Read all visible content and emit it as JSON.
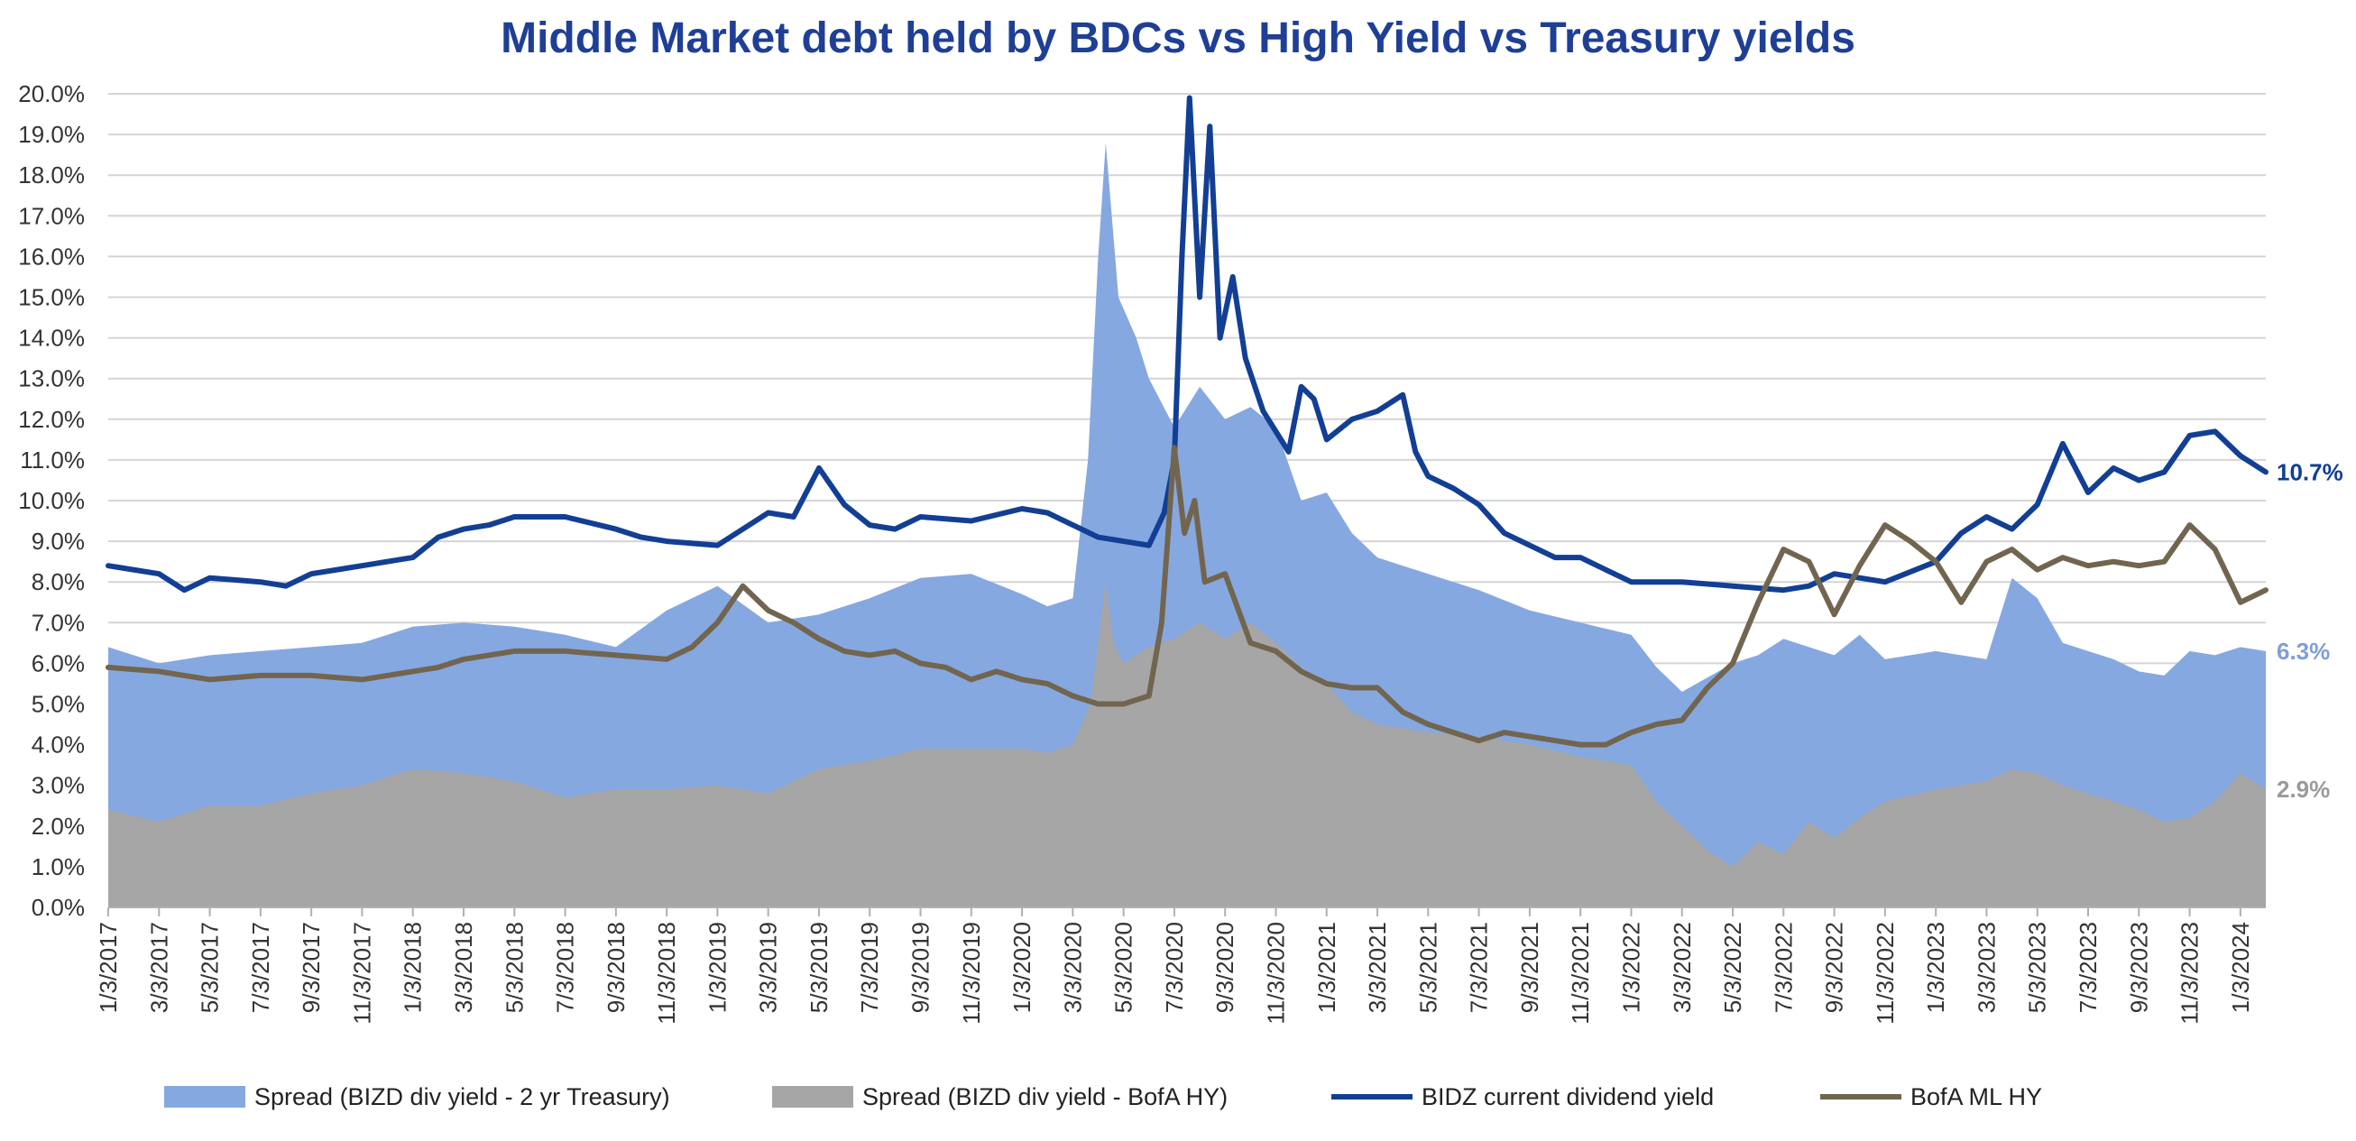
{
  "chart_data": {
    "type": "area",
    "title": "Middle Market debt held by BDCs vs High Yield vs Treasury yields",
    "xlabel": "",
    "ylabel": "",
    "ylim": [
      0,
      20
    ],
    "y_ticks": [
      "0.0%",
      "1.0%",
      "2.0%",
      "3.0%",
      "4.0%",
      "5.0%",
      "6.0%",
      "7.0%",
      "8.0%",
      "9.0%",
      "10.0%",
      "11.0%",
      "12.0%",
      "13.0%",
      "14.0%",
      "15.0%",
      "16.0%",
      "17.0%",
      "18.0%",
      "19.0%",
      "20.0%"
    ],
    "x_ticks": [
      "1/3/2017",
      "3/3/2017",
      "5/3/2017",
      "7/3/2017",
      "9/3/2017",
      "11/3/2017",
      "1/3/2018",
      "3/3/2018",
      "5/3/2018",
      "7/3/2018",
      "9/3/2018",
      "11/3/2018",
      "1/3/2019",
      "3/3/2019",
      "5/3/2019",
      "7/3/2019",
      "9/3/2019",
      "11/3/2019",
      "1/3/2020",
      "3/3/2020",
      "5/3/2020",
      "7/3/2020",
      "9/3/2020",
      "11/3/2020",
      "1/3/2021",
      "3/3/2021",
      "5/3/2021",
      "7/3/2021",
      "9/3/2021",
      "11/3/2021",
      "1/3/2022",
      "3/3/2022",
      "5/3/2022",
      "7/3/2022",
      "9/3/2022",
      "11/3/2022",
      "1/3/2023",
      "3/3/2023",
      "5/3/2023",
      "7/3/2023",
      "9/3/2023",
      "11/3/2023",
      "1/3/2024"
    ],
    "x_months": [
      0,
      85
    ],
    "grid": true,
    "legend_position": "bottom",
    "colors": {
      "spread_treasury": "#86a8e0",
      "spread_hy": "#a6a6a6",
      "bizd_yield": "#123f94",
      "bofa_hy": "#72654f"
    },
    "series": [
      {
        "name": "Spread (BIZD div yield - 2 yr Treasury)",
        "kind": "area",
        "color": "#86a8e0",
        "end_label": "6.3%",
        "points": [
          [
            0,
            6.4
          ],
          [
            2,
            6.0
          ],
          [
            4,
            6.2
          ],
          [
            6,
            6.3
          ],
          [
            8,
            6.4
          ],
          [
            10,
            6.5
          ],
          [
            12,
            6.9
          ],
          [
            14,
            7.0
          ],
          [
            16,
            6.9
          ],
          [
            18,
            6.7
          ],
          [
            20,
            6.4
          ],
          [
            22,
            7.3
          ],
          [
            24,
            7.9
          ],
          [
            26,
            7.0
          ],
          [
            28,
            7.2
          ],
          [
            30,
            7.6
          ],
          [
            32,
            8.1
          ],
          [
            34,
            8.2
          ],
          [
            36,
            7.7
          ],
          [
            37,
            7.4
          ],
          [
            38,
            7.6
          ],
          [
            38.6,
            11.0
          ],
          [
            39,
            16.0
          ],
          [
            39.3,
            18.8
          ],
          [
            39.8,
            15.0
          ],
          [
            40.5,
            14.0
          ],
          [
            41,
            13.0
          ],
          [
            42,
            11.8
          ],
          [
            43,
            12.8
          ],
          [
            44,
            12.0
          ],
          [
            45,
            12.3
          ],
          [
            46,
            11.8
          ],
          [
            47,
            10.0
          ],
          [
            48,
            10.2
          ],
          [
            49,
            9.2
          ],
          [
            50,
            8.6
          ],
          [
            51,
            8.4
          ],
          [
            52,
            8.2
          ],
          [
            54,
            7.8
          ],
          [
            56,
            7.3
          ],
          [
            58,
            7.0
          ],
          [
            60,
            6.7
          ],
          [
            61,
            5.9
          ],
          [
            62,
            5.3
          ],
          [
            64,
            6.0
          ],
          [
            65,
            6.2
          ],
          [
            66,
            6.6
          ],
          [
            67,
            6.4
          ],
          [
            68,
            6.2
          ],
          [
            69,
            6.7
          ],
          [
            70,
            6.1
          ],
          [
            72,
            6.3
          ],
          [
            74,
            6.1
          ],
          [
            75,
            8.1
          ],
          [
            76,
            7.6
          ],
          [
            77,
            6.5
          ],
          [
            78,
            6.3
          ],
          [
            79,
            6.1
          ],
          [
            80,
            5.8
          ],
          [
            81,
            5.7
          ],
          [
            82,
            6.3
          ],
          [
            83,
            6.2
          ],
          [
            84,
            6.4
          ],
          [
            85,
            6.3
          ]
        ]
      },
      {
        "name": "Spread (BIZD div yield - BofA HY)",
        "kind": "area",
        "color": "#a6a6a6",
        "end_label": "2.9%",
        "points": [
          [
            0,
            2.4
          ],
          [
            2,
            2.1
          ],
          [
            4,
            2.5
          ],
          [
            6,
            2.5
          ],
          [
            8,
            2.8
          ],
          [
            10,
            3.0
          ],
          [
            12,
            3.4
          ],
          [
            14,
            3.3
          ],
          [
            16,
            3.1
          ],
          [
            18,
            2.7
          ],
          [
            20,
            2.9
          ],
          [
            22,
            2.9
          ],
          [
            24,
            3.0
          ],
          [
            26,
            2.8
          ],
          [
            28,
            3.4
          ],
          [
            30,
            3.6
          ],
          [
            32,
            3.9
          ],
          [
            34,
            3.9
          ],
          [
            36,
            3.9
          ],
          [
            37,
            3.8
          ],
          [
            38,
            4.0
          ],
          [
            38.7,
            5.0
          ],
          [
            39.3,
            8.0
          ],
          [
            39.6,
            6.5
          ],
          [
            40,
            6.0
          ],
          [
            41,
            6.4
          ],
          [
            42,
            6.6
          ],
          [
            43,
            7.0
          ],
          [
            44,
            6.6
          ],
          [
            45,
            7.0
          ],
          [
            46,
            6.5
          ],
          [
            47,
            5.9
          ],
          [
            48,
            5.5
          ],
          [
            49,
            4.8
          ],
          [
            50,
            4.5
          ],
          [
            52,
            4.3
          ],
          [
            54,
            4.2
          ],
          [
            56,
            4.0
          ],
          [
            58,
            3.7
          ],
          [
            60,
            3.5
          ],
          [
            61,
            2.6
          ],
          [
            62,
            2.0
          ],
          [
            63,
            1.4
          ],
          [
            64,
            1.0
          ],
          [
            65,
            1.6
          ],
          [
            66,
            1.3
          ],
          [
            67,
            2.1
          ],
          [
            68,
            1.7
          ],
          [
            69,
            2.2
          ],
          [
            70,
            2.6
          ],
          [
            72,
            2.9
          ],
          [
            74,
            3.1
          ],
          [
            75,
            3.4
          ],
          [
            76,
            3.3
          ],
          [
            77,
            3.0
          ],
          [
            78,
            2.8
          ],
          [
            79,
            2.6
          ],
          [
            80,
            2.4
          ],
          [
            81,
            2.1
          ],
          [
            82,
            2.2
          ],
          [
            83,
            2.6
          ],
          [
            84,
            3.3
          ],
          [
            85,
            2.9
          ]
        ]
      },
      {
        "name": "BIDZ current dividend yield",
        "kind": "line",
        "color": "#123f94",
        "end_label": "10.7%",
        "points": [
          [
            0,
            8.4
          ],
          [
            2,
            8.2
          ],
          [
            3,
            7.8
          ],
          [
            4,
            8.1
          ],
          [
            6,
            8.0
          ],
          [
            7,
            7.9
          ],
          [
            8,
            8.2
          ],
          [
            10,
            8.4
          ],
          [
            12,
            8.6
          ],
          [
            13,
            9.1
          ],
          [
            14,
            9.3
          ],
          [
            15,
            9.4
          ],
          [
            16,
            9.6
          ],
          [
            18,
            9.6
          ],
          [
            20,
            9.3
          ],
          [
            21,
            9.1
          ],
          [
            22,
            9.0
          ],
          [
            24,
            8.9
          ],
          [
            25,
            9.3
          ],
          [
            26,
            9.7
          ],
          [
            27,
            9.6
          ],
          [
            28,
            10.8
          ],
          [
            29,
            9.9
          ],
          [
            30,
            9.4
          ],
          [
            31,
            9.3
          ],
          [
            32,
            9.6
          ],
          [
            34,
            9.5
          ],
          [
            36,
            9.8
          ],
          [
            37,
            9.7
          ],
          [
            38,
            9.4
          ],
          [
            39,
            9.1
          ],
          [
            40,
            9.0
          ],
          [
            41,
            8.9
          ],
          [
            41.6,
            9.7
          ],
          [
            42,
            11.0
          ],
          [
            42.3,
            16.0
          ],
          [
            42.6,
            19.9
          ],
          [
            43,
            15.0
          ],
          [
            43.4,
            19.2
          ],
          [
            43.8,
            14.0
          ],
          [
            44.3,
            15.5
          ],
          [
            44.8,
            13.5
          ],
          [
            45.5,
            12.2
          ],
          [
            46.5,
            11.2
          ],
          [
            47,
            12.8
          ],
          [
            47.5,
            12.5
          ],
          [
            48,
            11.5
          ],
          [
            49,
            12.0
          ],
          [
            50,
            12.2
          ],
          [
            51,
            12.6
          ],
          [
            51.5,
            11.2
          ],
          [
            52,
            10.6
          ],
          [
            53,
            10.3
          ],
          [
            54,
            9.9
          ],
          [
            55,
            9.2
          ],
          [
            56,
            8.9
          ],
          [
            57,
            8.6
          ],
          [
            58,
            8.6
          ],
          [
            59,
            8.3
          ],
          [
            60,
            8.0
          ],
          [
            62,
            8.0
          ],
          [
            64,
            7.9
          ],
          [
            66,
            7.8
          ],
          [
            67,
            7.9
          ],
          [
            68,
            8.2
          ],
          [
            70,
            8.0
          ],
          [
            72,
            8.5
          ],
          [
            73,
            9.2
          ],
          [
            74,
            9.6
          ],
          [
            75,
            9.3
          ],
          [
            76,
            9.9
          ],
          [
            77,
            11.4
          ],
          [
            78,
            10.2
          ],
          [
            79,
            10.8
          ],
          [
            80,
            10.5
          ],
          [
            81,
            10.7
          ],
          [
            82,
            11.6
          ],
          [
            83,
            11.7
          ],
          [
            84,
            11.1
          ],
          [
            85,
            10.7
          ]
        ]
      },
      {
        "name": "BofA ML HY",
        "kind": "line",
        "color": "#72654f",
        "end_label": "",
        "points": [
          [
            0,
            5.9
          ],
          [
            2,
            5.8
          ],
          [
            4,
            5.6
          ],
          [
            6,
            5.7
          ],
          [
            8,
            5.7
          ],
          [
            10,
            5.6
          ],
          [
            12,
            5.8
          ],
          [
            13,
            5.9
          ],
          [
            14,
            6.1
          ],
          [
            16,
            6.3
          ],
          [
            18,
            6.3
          ],
          [
            20,
            6.2
          ],
          [
            22,
            6.1
          ],
          [
            23,
            6.4
          ],
          [
            24,
            7.0
          ],
          [
            25,
            7.9
          ],
          [
            26,
            7.3
          ],
          [
            27,
            7.0
          ],
          [
            28,
            6.6
          ],
          [
            29,
            6.3
          ],
          [
            30,
            6.2
          ],
          [
            31,
            6.3
          ],
          [
            32,
            6.0
          ],
          [
            33,
            5.9
          ],
          [
            34,
            5.6
          ],
          [
            35,
            5.8
          ],
          [
            36,
            5.6
          ],
          [
            37,
            5.5
          ],
          [
            38,
            5.2
          ],
          [
            39,
            5.0
          ],
          [
            40,
            5.0
          ],
          [
            41,
            5.2
          ],
          [
            41.5,
            7.0
          ],
          [
            42,
            11.3
          ],
          [
            42.4,
            9.2
          ],
          [
            42.8,
            10.0
          ],
          [
            43.2,
            8.0
          ],
          [
            44,
            8.2
          ],
          [
            45,
            6.5
          ],
          [
            46,
            6.3
          ],
          [
            47,
            5.8
          ],
          [
            48,
            5.5
          ],
          [
            49,
            5.4
          ],
          [
            50,
            5.4
          ],
          [
            51,
            4.8
          ],
          [
            52,
            4.5
          ],
          [
            53,
            4.3
          ],
          [
            54,
            4.1
          ],
          [
            55,
            4.3
          ],
          [
            56,
            4.2
          ],
          [
            57,
            4.1
          ],
          [
            58,
            4.0
          ],
          [
            59,
            4.0
          ],
          [
            60,
            4.3
          ],
          [
            61,
            4.5
          ],
          [
            62,
            4.6
          ],
          [
            63,
            5.4
          ],
          [
            64,
            6.0
          ],
          [
            65,
            7.5
          ],
          [
            66,
            8.8
          ],
          [
            67,
            8.5
          ],
          [
            68,
            7.2
          ],
          [
            69,
            8.4
          ],
          [
            70,
            9.4
          ],
          [
            71,
            9.0
          ],
          [
            72,
            8.5
          ],
          [
            73,
            7.5
          ],
          [
            74,
            8.5
          ],
          [
            75,
            8.8
          ],
          [
            76,
            8.3
          ],
          [
            77,
            8.6
          ],
          [
            78,
            8.4
          ],
          [
            79,
            8.5
          ],
          [
            80,
            8.4
          ],
          [
            81,
            8.5
          ],
          [
            82,
            9.4
          ],
          [
            83,
            8.8
          ],
          [
            84,
            7.5
          ],
          [
            85,
            7.8
          ]
        ]
      }
    ]
  }
}
